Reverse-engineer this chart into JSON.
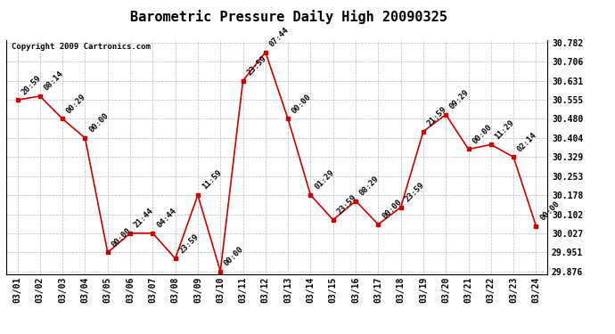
{
  "title": "Barometric Pressure Daily High 20090325",
  "copyright": "Copyright 2009 Cartronics.com",
  "dates": [
    "03/01",
    "03/02",
    "03/03",
    "03/04",
    "03/05",
    "03/06",
    "03/07",
    "03/08",
    "03/09",
    "03/10",
    "03/11",
    "03/12",
    "03/13",
    "03/14",
    "03/15",
    "03/16",
    "03/17",
    "03/18",
    "03/19",
    "03/20",
    "03/21",
    "03/22",
    "03/23",
    "03/24"
  ],
  "values": [
    30.555,
    30.57,
    30.48,
    30.404,
    29.951,
    30.027,
    30.027,
    29.927,
    30.178,
    29.876,
    30.631,
    30.744,
    30.48,
    30.178,
    30.08,
    30.155,
    30.062,
    30.13,
    30.43,
    30.497,
    30.36,
    30.378,
    30.329,
    30.055
  ],
  "annotations": [
    "20:59",
    "08:14",
    "00:29",
    "00:00",
    "00:00",
    "21:44",
    "04:44",
    "23:59",
    "11:59",
    "00:00",
    "23:59",
    "07:44",
    "00:00",
    "01:29",
    "23:59",
    "08:29",
    "00:00",
    "23:59",
    "21:59",
    "09:29",
    "00:00",
    "11:29",
    "02:14",
    "00:00"
  ],
  "ylim_min": 29.866,
  "ylim_max": 30.792,
  "yticks": [
    29.876,
    29.951,
    30.027,
    30.102,
    30.178,
    30.253,
    30.329,
    30.404,
    30.48,
    30.555,
    30.631,
    30.706,
    30.782
  ],
  "line_color": "#cc0000",
  "marker_color": "#cc0000",
  "bg_color": "#ffffff",
  "grid_color": "#bbbbbb",
  "title_fontsize": 11,
  "annot_fontsize": 6.5,
  "tick_fontsize": 7,
  "copyright_fontsize": 6.5
}
